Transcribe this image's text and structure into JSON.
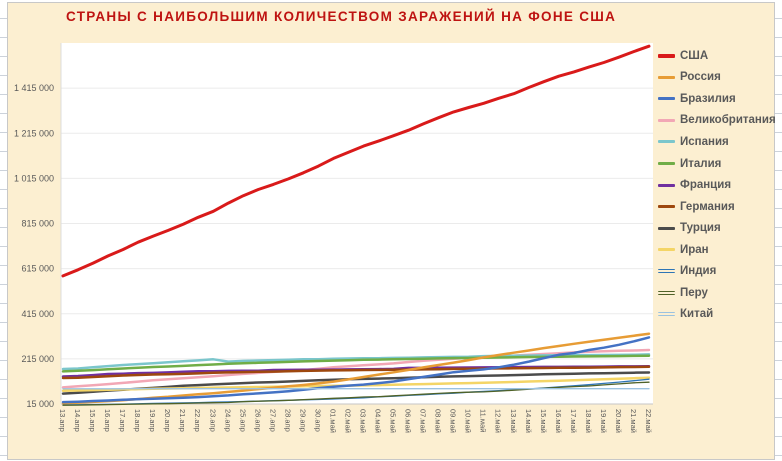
{
  "colors": {
    "chart_background": "#FCEFD1",
    "plot_background": "#FFFFFF",
    "title": "#BE1311",
    "axis_text": "#595959",
    "gridline": "#EBEBEB",
    "axis_line": "#C6C6C6",
    "chart_border": "#C8C8C8"
  },
  "chart_data": {
    "type": "line",
    "title": "СТРАНЫ С НАИБОЛЬШИМ КОЛИЧЕСТВОМ ЗАРАЖЕНИЙ НА ФОНЕ США",
    "legend_position": "right",
    "grid": "horizontal-only",
    "x_labels": [
      "13.апр",
      "14.апр",
      "15.апр",
      "16.апр",
      "17.апр",
      "18.апр",
      "19.апр",
      "20.апр",
      "21.апр",
      "22.апр",
      "23.апр",
      "24.апр",
      "25.апр",
      "26.апр",
      "27.апр",
      "28.апр",
      "29.апр",
      "30.апр",
      "01.май",
      "02.май",
      "03.май",
      "04.май",
      "05.май",
      "06.май",
      "07.май",
      "08.май",
      "09.май",
      "10.май",
      "11.май",
      "12.май",
      "13.май",
      "14.май",
      "15.май",
      "16.май",
      "17.май",
      "18.май",
      "19.май",
      "20.май",
      "21.май",
      "22.май"
    ],
    "y_axis": {
      "min": 15000,
      "max": 1615000,
      "tick_interval": 200000,
      "tick_labels": [
        "15 000",
        "215 000",
        "415 000",
        "615 000",
        "815 000",
        "1 015 000",
        "1 215 000",
        "1 415 000"
      ]
    },
    "series": [
      {
        "key": "usa",
        "name": "США",
        "color": "#D91A1A",
        "width": 3,
        "z": 1,
        "values": [
          582594,
          609696,
          639664,
          671425,
          699706,
          732197,
          759086,
          784326,
          811865,
          842629,
          869170,
          905358,
          938154,
          965785,
          988197,
          1012582,
          1039909,
          1069424,
          1103461,
          1131030,
          1158040,
          1180375,
          1204351,
          1228603,
          1256972,
          1283929,
          1309541,
          1329260,
          1347881,
          1369964,
          1390406,
          1417889,
          1443397,
          1467884,
          1486757,
          1508308,
          1528568,
          1551853,
          1577287,
          1600937
        ]
      },
      {
        "key": "russia",
        "name": "Россия",
        "color": "#E79C35",
        "width": 2.5,
        "z": 9,
        "values": [
          18328,
          21102,
          24490,
          27938,
          32008,
          36793,
          42853,
          47121,
          52763,
          57999,
          62773,
          68622,
          74588,
          80949,
          87147,
          93558,
          99399,
          106498,
          114431,
          124054,
          134687,
          145268,
          155370,
          165929,
          177160,
          187859,
          198676,
          209688,
          221344,
          232243,
          242271,
          252245,
          262843,
          272043,
          281752,
          290678,
          299941,
          308705,
          317554,
          326448
        ]
      },
      {
        "key": "brazil",
        "name": "Бразилия",
        "color": "#4472C4",
        "width": 2.5,
        "z": 10,
        "values": [
          23430,
          25262,
          28320,
          30425,
          33682,
          36599,
          38654,
          40581,
          43079,
          45757,
          49492,
          52995,
          58509,
          61888,
          66501,
          71886,
          78162,
          85380,
          91589,
          96559,
          101147,
          107780,
          114715,
          125218,
          135106,
          145328,
          155939,
          162699,
          168331,
          177589,
          188974,
          202918,
          218223,
          233142,
          241080,
          254220,
          264628,
          277579,
          293087,
          310087
        ]
      },
      {
        "key": "uk",
        "name": "Великобритания",
        "color": "#F2A7B5",
        "width": 2.5,
        "z": 2,
        "values": [
          88621,
          93873,
          98476,
          103093,
          108692,
          114217,
          120067,
          124743,
          129044,
          133495,
          138078,
          143464,
          148377,
          152840,
          157149,
          161145,
          165221,
          171253,
          177454,
          182260,
          186599,
          190584,
          194990,
          201101,
          206715,
          211364,
          215260,
          219183,
          223060,
          226463,
          229705,
          233151,
          236711,
          240161,
          243695,
          246406,
          248818,
          250908,
          252246,
          254195
        ]
      },
      {
        "key": "spain",
        "name": "Испания",
        "color": "#7BC6CC",
        "width": 2.5,
        "z": 3,
        "values": [
          170099,
          172541,
          177633,
          182816,
          188068,
          191726,
          195944,
          200210,
          204178,
          208389,
          213024,
          202990,
          205905,
          207634,
          209465,
          210773,
          212917,
          213435,
          215216,
          216582,
          217466,
          218011,
          219329,
          220325,
          221447,
          222857,
          223578,
          224350,
          227436,
          228030,
          228691,
          229540,
          230183,
          230698,
          231350,
          231606,
          232037,
          232555,
          233037,
          234824
        ]
      },
      {
        "key": "italy",
        "name": "Италия",
        "color": "#70AD47",
        "width": 2.5,
        "z": 4,
        "values": [
          159516,
          162488,
          165155,
          168941,
          172434,
          175925,
          178972,
          181228,
          183957,
          187327,
          189973,
          192994,
          195351,
          197675,
          199414,
          201505,
          203591,
          205463,
          207428,
          209328,
          210717,
          211938,
          213013,
          214457,
          215858,
          217185,
          218268,
          219070,
          219814,
          221216,
          222104,
          223096,
          223885,
          224760,
          225435,
          225886,
          226699,
          227364,
          228006,
          228658
        ]
      },
      {
        "key": "france",
        "name": "Франция",
        "color": "#7030A0",
        "width": 2.5,
        "z": 5,
        "values": [
          136779,
          139063,
          143303,
          147863,
          149130,
          151793,
          152894,
          155275,
          158050,
          159877,
          159828,
          161488,
          162100,
          162220,
          165842,
          166036,
          166976,
          167178,
          167346,
          168396,
          168693,
          169462,
          170551,
          174791,
          174918,
          176079,
          176158,
          176970,
          177423,
          178225,
          178428,
          178870,
          179306,
          179645,
          179927,
          180051,
          180809,
          181575,
          181826,
          182219
        ]
      },
      {
        "key": "germany",
        "name": "Германия",
        "color": "#9E480E",
        "width": 2.5,
        "z": 6,
        "values": [
          130072,
          131359,
          134753,
          137698,
          141397,
          143724,
          145742,
          147065,
          148291,
          150648,
          153129,
          154999,
          156513,
          157770,
          158758,
          159912,
          161539,
          163009,
          164077,
          164967,
          165664,
          166152,
          167007,
          167300,
          168162,
          169430,
          170588,
          171324,
          171879,
          172576,
          173171,
          174098,
          174478,
          175233,
          175752,
          176369,
          177289,
          178473,
          179021,
          179986
        ]
      },
      {
        "key": "turkey",
        "name": "Турция",
        "color": "#4B4B4B",
        "width": 2.5,
        "z": 7,
        "values": [
          61049,
          65111,
          69392,
          74193,
          78546,
          82329,
          86306,
          90980,
          95591,
          98674,
          101790,
          104912,
          107773,
          110130,
          112261,
          114653,
          117589,
          120204,
          122392,
          124375,
          126045,
          127659,
          129491,
          131744,
          133721,
          135569,
          137115,
          138657,
          139771,
          141475,
          143114,
          144749,
          146457,
          148067,
          149435,
          150593,
          151615,
          152587,
          153548,
          154500
        ]
      },
      {
        "key": "iran",
        "name": "Иран",
        "color": "#F4D566",
        "width": 2.5,
        "z": 8,
        "values": [
          73303,
          74877,
          76389,
          77995,
          79494,
          80868,
          82211,
          83505,
          84802,
          85996,
          87026,
          88194,
          89328,
          90481,
          91472,
          92584,
          93657,
          94640,
          95646,
          96448,
          97424,
          98647,
          99970,
          101650,
          103135,
          104691,
          106220,
          107603,
          109286,
          110767,
          112725,
          114533,
          116635,
          118392,
          120198,
          122492,
          124603,
          126949,
          129341,
          131652
        ]
      },
      {
        "key": "india",
        "name": "Индия",
        "color": "#2E75B6",
        "width": 1.3,
        "z": 11,
        "values": [
          10453,
          11487,
          12370,
          13430,
          14352,
          15722,
          17615,
          18539,
          20080,
          21370,
          23077,
          24506,
          26283,
          27890,
          29451,
          31324,
          33062,
          34863,
          37257,
          39699,
          42505,
          46437,
          49400,
          52987,
          56351,
          59695,
          62808,
          67161,
          70768,
          74292,
          78055,
          81997,
          85784,
          90648,
          95698,
          100328,
          106475,
          112028,
          118226,
          124794
        ]
      },
      {
        "key": "peru",
        "name": "Перу",
        "color": "#4F6228",
        "width": 1.3,
        "z": 12,
        "values": [
          9784,
          10303,
          11475,
          12491,
          13489,
          14420,
          15628,
          16325,
          17837,
          19250,
          20914,
          21648,
          25331,
          27517,
          28699,
          31190,
          33931,
          36976,
          40459,
          42534,
          45928,
          47372,
          51189,
          54817,
          58526,
          61847,
          65015,
          67307,
          68822,
          72059,
          76306,
          80604,
          84495,
          88541,
          92273,
          94933,
          99483,
          104020,
          108769,
          111698
        ]
      },
      {
        "key": "china",
        "name": "Китай",
        "color": "#9BC2E0",
        "width": 1.3,
        "z": 13,
        "values": [
          82160,
          82241,
          82295,
          82341,
          82367,
          82719,
          82735,
          82747,
          82758,
          82788,
          82798,
          82804,
          82816,
          82827,
          82830,
          82836,
          82858,
          82874,
          82875,
          82877,
          82880,
          82881,
          82883,
          82885,
          82886,
          82887,
          82901,
          82918,
          82918,
          82919,
          82926,
          82929,
          82933,
          82941,
          82947,
          82954,
          82960,
          82965,
          82971,
          82971
        ]
      }
    ]
  }
}
